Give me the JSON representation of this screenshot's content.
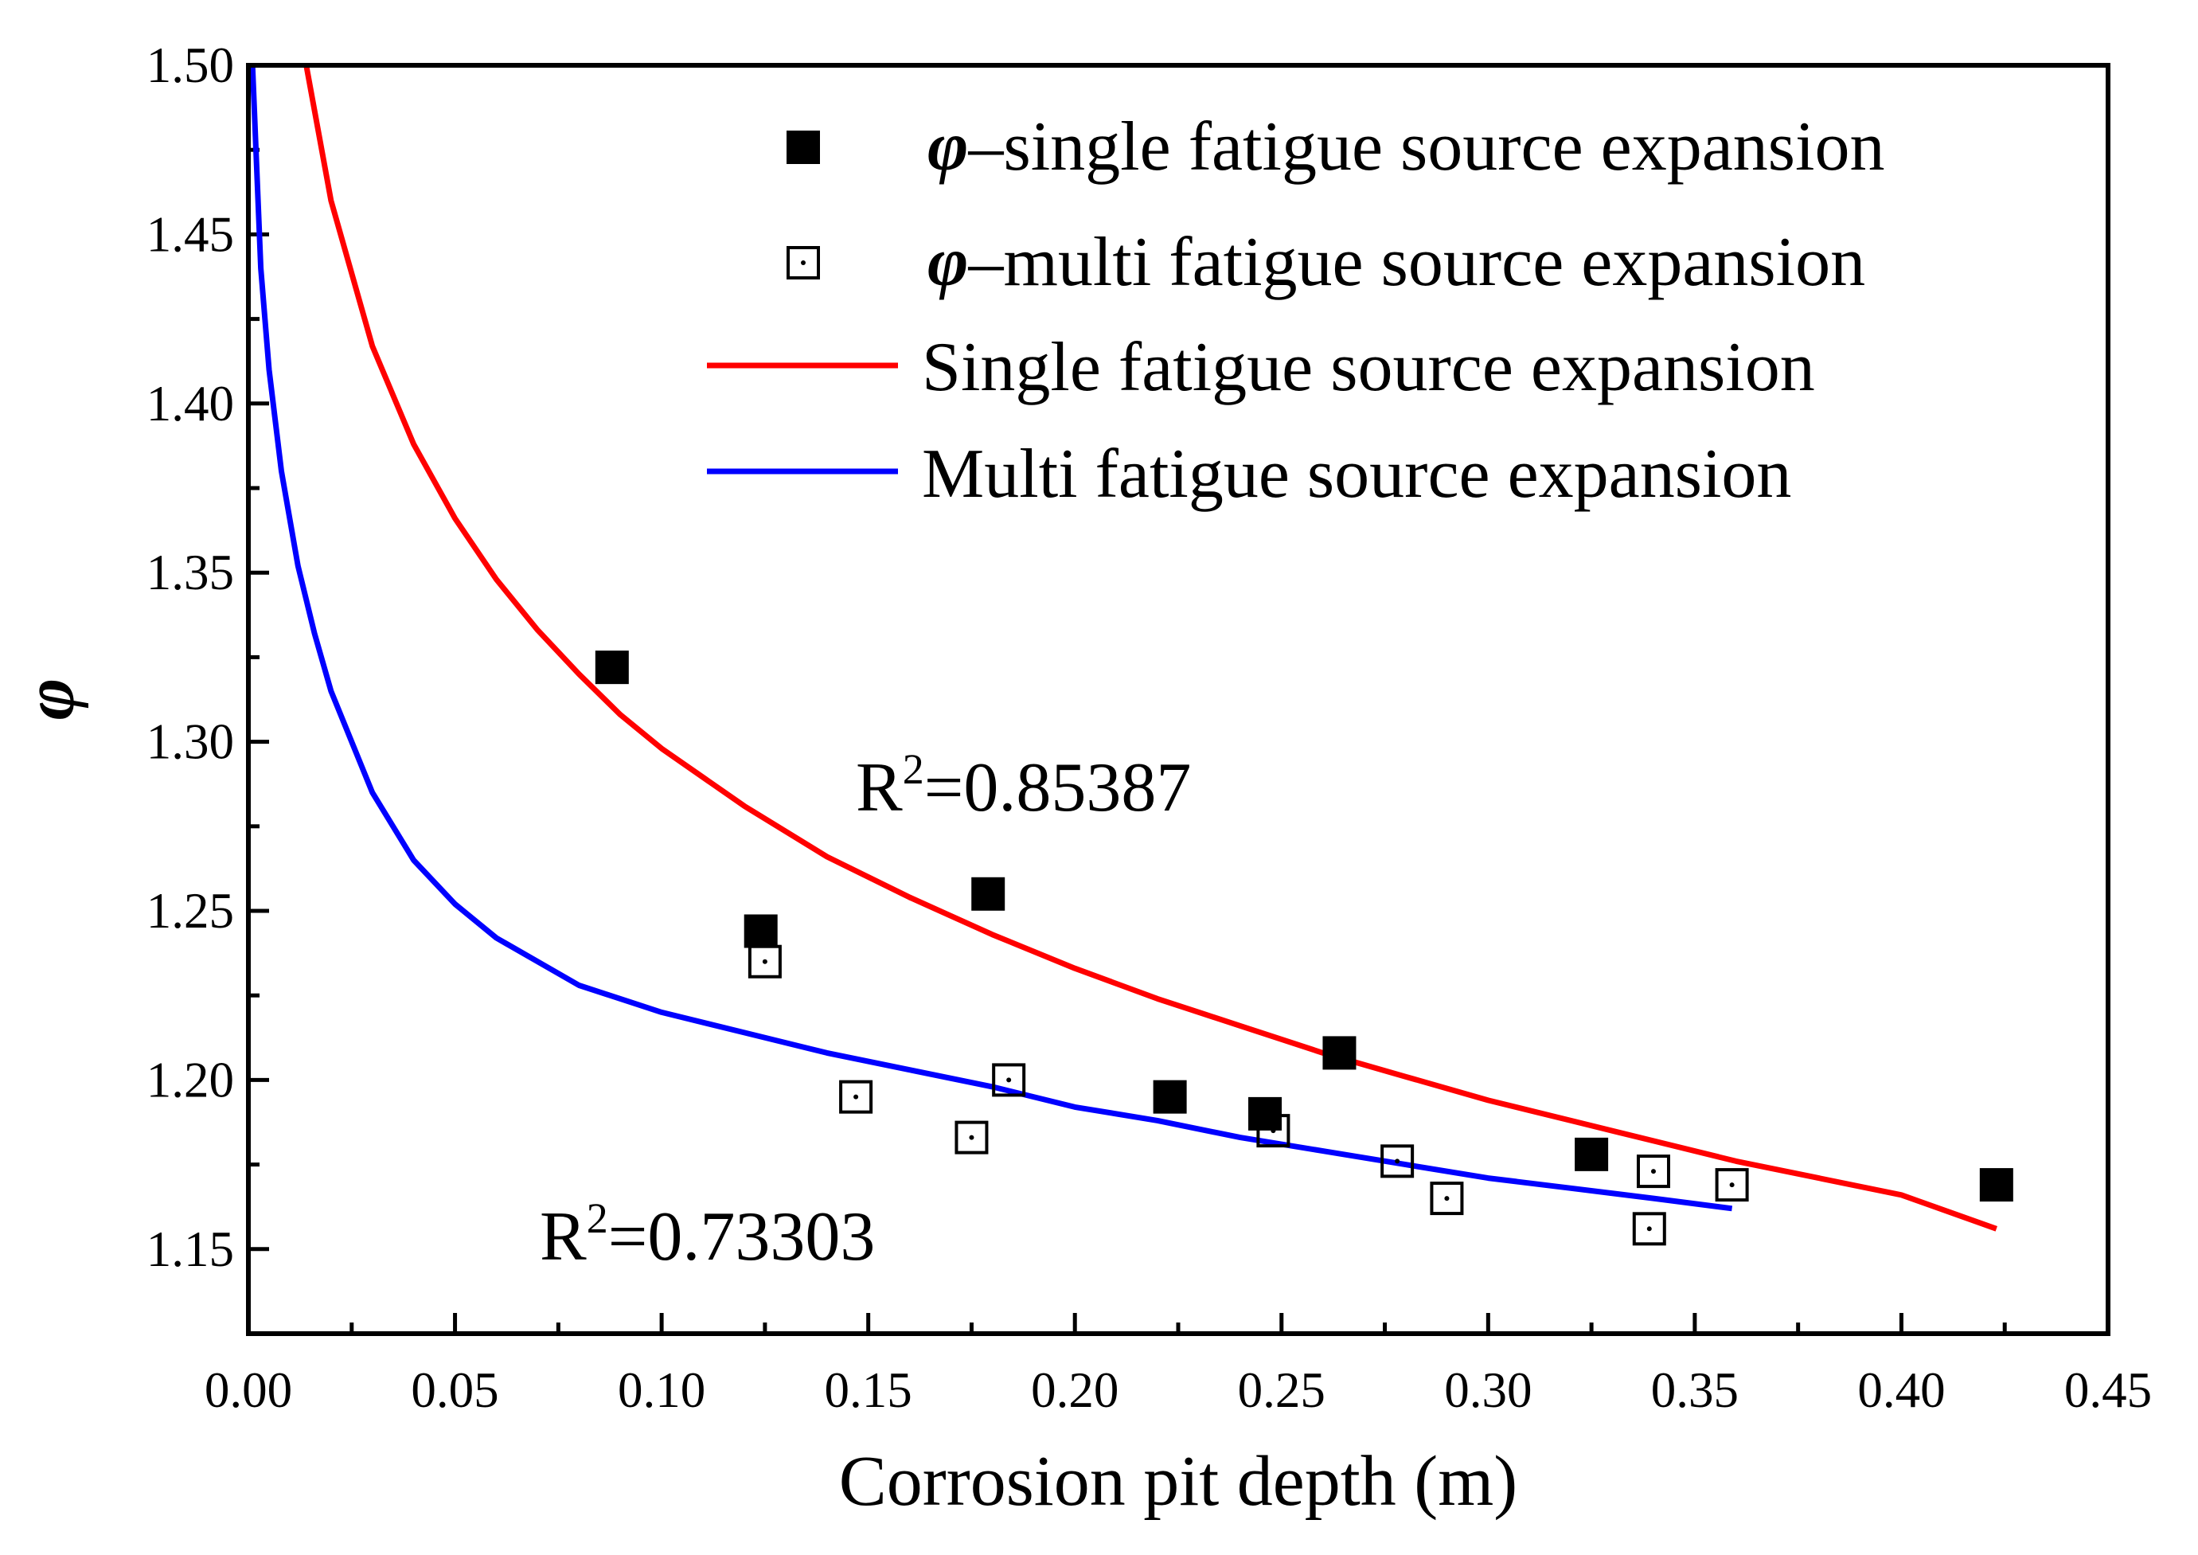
{
  "chart_data": {
    "type": "scatter",
    "xlabel": "Corrosion pit depth (m)",
    "ylabel": "φ",
    "xlim": [
      0.0,
      0.45
    ],
    "ylim": [
      1.125,
      1.5
    ],
    "x_ticks": [
      "0.00",
      "0.05",
      "0.10",
      "0.15",
      "0.20",
      "0.25",
      "0.30",
      "0.35",
      "0.40",
      "0.45"
    ],
    "y_ticks": [
      "1.15",
      "1.20",
      "1.25",
      "1.30",
      "1.35",
      "1.40",
      "1.45",
      "1.50"
    ],
    "series": [
      {
        "name": "single",
        "legend_symbol": "φ",
        "legend_label": "–single fatigue source expansion",
        "marker": "filled-square",
        "color": "#000000",
        "x": [
          0.088,
          0.124,
          0.179,
          0.223,
          0.246,
          0.264,
          0.325,
          0.423
        ],
        "y": [
          1.322,
          1.244,
          1.255,
          1.195,
          1.19,
          1.208,
          1.178,
          1.169
        ]
      },
      {
        "name": "multi",
        "legend_symbol": "φ",
        "legend_label": "–multi fatigue source expansion",
        "marker": "open-square-dot",
        "color": "#000000",
        "x": [
          0.125,
          0.147,
          0.175,
          0.184,
          0.248,
          0.278,
          0.29,
          0.339,
          0.34,
          0.359
        ],
        "y": [
          1.235,
          1.195,
          1.183,
          1.2,
          1.185,
          1.176,
          1.165,
          1.156,
          1.173,
          1.169
        ]
      }
    ],
    "fits": [
      {
        "name": "Single fatigue source expansion",
        "color": "#ff0000",
        "x": [
          0.014,
          0.02,
          0.03,
          0.04,
          0.05,
          0.06,
          0.07,
          0.08,
          0.09,
          0.1,
          0.12,
          0.14,
          0.16,
          0.18,
          0.2,
          0.22,
          0.24,
          0.26,
          0.28,
          0.3,
          0.32,
          0.34,
          0.36,
          0.38,
          0.4,
          0.423
        ],
        "y": [
          1.5,
          1.46,
          1.417,
          1.388,
          1.366,
          1.348,
          1.333,
          1.32,
          1.308,
          1.298,
          1.281,
          1.266,
          1.254,
          1.243,
          1.233,
          1.224,
          1.216,
          1.208,
          1.201,
          1.194,
          1.188,
          1.182,
          1.176,
          1.171,
          1.166,
          1.156
        ]
      },
      {
        "name": "Multi fatigue source expansion",
        "color": "#0000ff",
        "x": [
          0.001,
          0.002,
          0.003,
          0.005,
          0.008,
          0.012,
          0.016,
          0.02,
          0.03,
          0.04,
          0.05,
          0.06,
          0.08,
          0.1,
          0.12,
          0.14,
          0.16,
          0.18,
          0.2,
          0.22,
          0.24,
          0.26,
          0.28,
          0.3,
          0.32,
          0.34,
          0.359
        ],
        "y": [
          1.5,
          1.47,
          1.44,
          1.41,
          1.38,
          1.352,
          1.332,
          1.315,
          1.285,
          1.265,
          1.252,
          1.242,
          1.228,
          1.22,
          1.214,
          1.208,
          1.203,
          1.198,
          1.192,
          1.188,
          1.183,
          1.179,
          1.175,
          1.171,
          1.168,
          1.165,
          1.162
        ]
      }
    ],
    "annotations": [
      {
        "text_base": "R",
        "text_sup": "2",
        "text_value": "=0.85387"
      },
      {
        "text_base": "R",
        "text_sup": "2",
        "text_value": "=0.73303"
      }
    ]
  }
}
